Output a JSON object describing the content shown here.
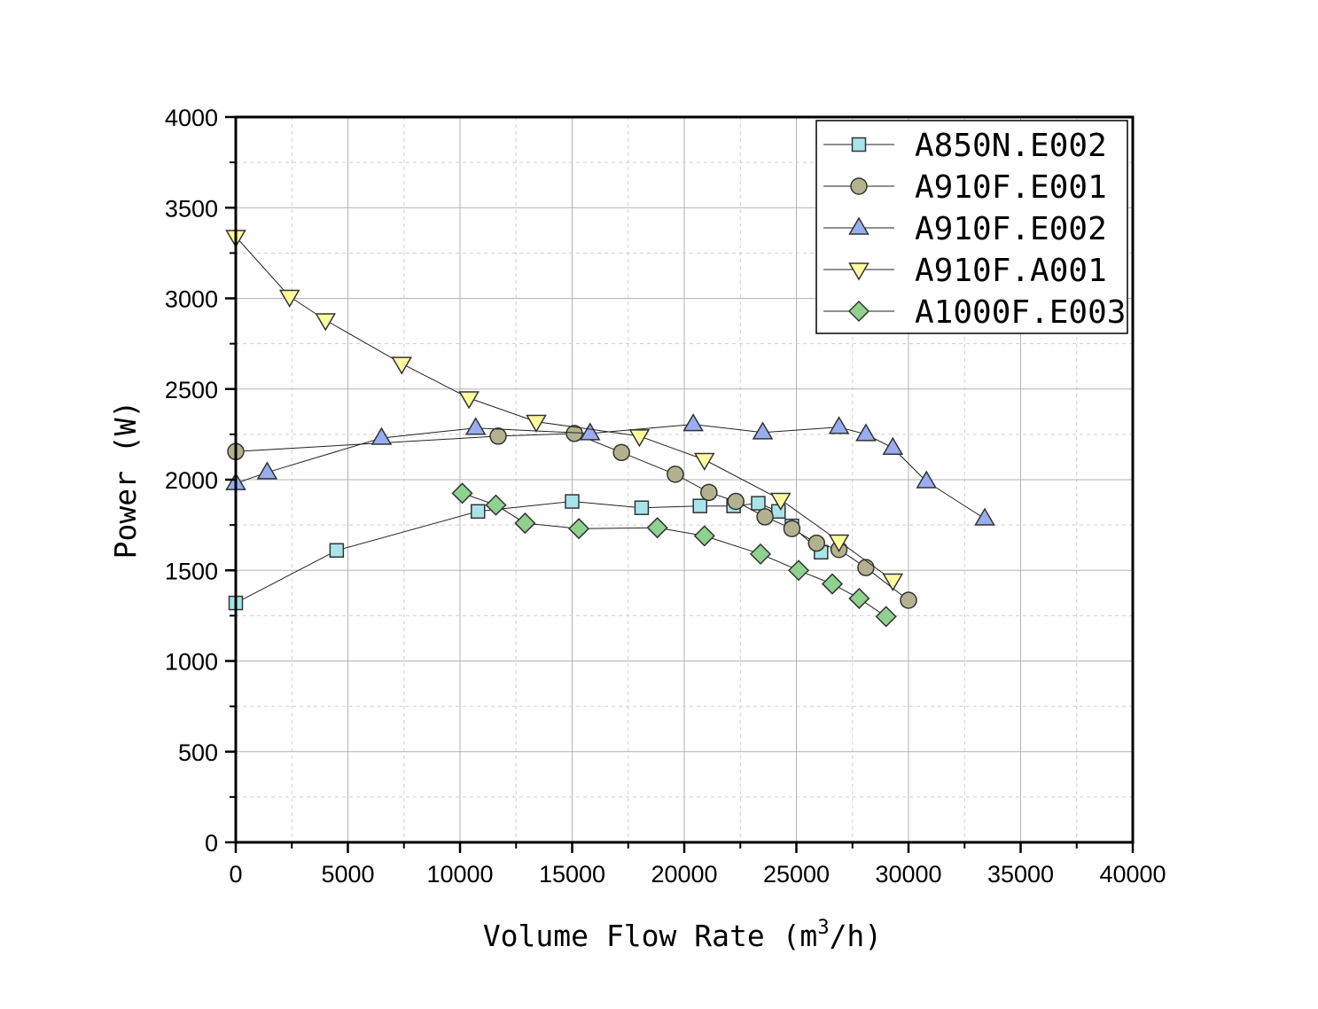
{
  "chart_data": {
    "type": "line",
    "title": "",
    "xlabel": "Volume Flow Rate (m",
    "xlabel_sup": "3",
    "xlabel_tail": "/h)",
    "ylabel": "Power (W)",
    "xlim": [
      0,
      40000
    ],
    "ylim": [
      0,
      4000
    ],
    "x_major_ticks": [
      0,
      5000,
      10000,
      15000,
      20000,
      25000,
      30000,
      35000,
      40000
    ],
    "y_major_ticks": [
      0,
      500,
      1000,
      1500,
      2000,
      2500,
      3000,
      3500,
      4000
    ],
    "x_tick_labels": [
      "0",
      "5000",
      "10000",
      "15000",
      "20000",
      "25000",
      "30000",
      "35000",
      "40000"
    ],
    "y_tick_labels": [
      "0",
      "500",
      "1000",
      "1500",
      "2000",
      "2500",
      "3000",
      "3500",
      "4000"
    ],
    "grid": true,
    "legend_position": "top-right",
    "series": [
      {
        "name": "A850N.E002",
        "marker": "square",
        "color": "#a8e4ea",
        "x": [
          0,
          4500,
          10800,
          15000,
          18100,
          20700,
          22200,
          23300,
          24200,
          24800,
          26100
        ],
        "y": [
          1320,
          1610,
          1825,
          1880,
          1845,
          1855,
          1855,
          1870,
          1825,
          1745,
          1600
        ]
      },
      {
        "name": "A910F.E001",
        "marker": "circle",
        "color": "#b4b28e",
        "x": [
          0,
          11700,
          15100,
          17200,
          19600,
          21100,
          22300,
          23600,
          24800,
          25900,
          26900,
          28100,
          30000
        ],
        "y": [
          2155,
          2240,
          2255,
          2150,
          2030,
          1930,
          1880,
          1795,
          1730,
          1650,
          1615,
          1515,
          1335
        ]
      },
      {
        "name": "A910F.E002",
        "marker": "triangle-up",
        "color": "#98aef0",
        "x": [
          0,
          1400,
          6500,
          10700,
          15800,
          20400,
          23500,
          26900,
          28100,
          29300,
          30800,
          33400
        ],
        "y": [
          1980,
          2040,
          2230,
          2285,
          2255,
          2305,
          2260,
          2290,
          2250,
          2175,
          1990,
          1785
        ]
      },
      {
        "name": "A910F.A001",
        "marker": "triangle-down",
        "color": "#ffffa0",
        "x": [
          0,
          2400,
          4000,
          7400,
          10400,
          13400,
          18000,
          20900,
          24300,
          26900,
          29300
        ],
        "y": [
          3340,
          3010,
          2880,
          2640,
          2450,
          2320,
          2240,
          2110,
          1890,
          1660,
          1445
        ]
      },
      {
        "name": "A1000F.E003",
        "marker": "diamond",
        "color": "#8fd18f",
        "x": [
          10100,
          11600,
          12900,
          15300,
          18800,
          20900,
          23400,
          25100,
          26600,
          27800,
          29000
        ],
        "y": [
          1925,
          1860,
          1760,
          1730,
          1735,
          1690,
          1590,
          1500,
          1425,
          1345,
          1245
        ]
      }
    ]
  }
}
